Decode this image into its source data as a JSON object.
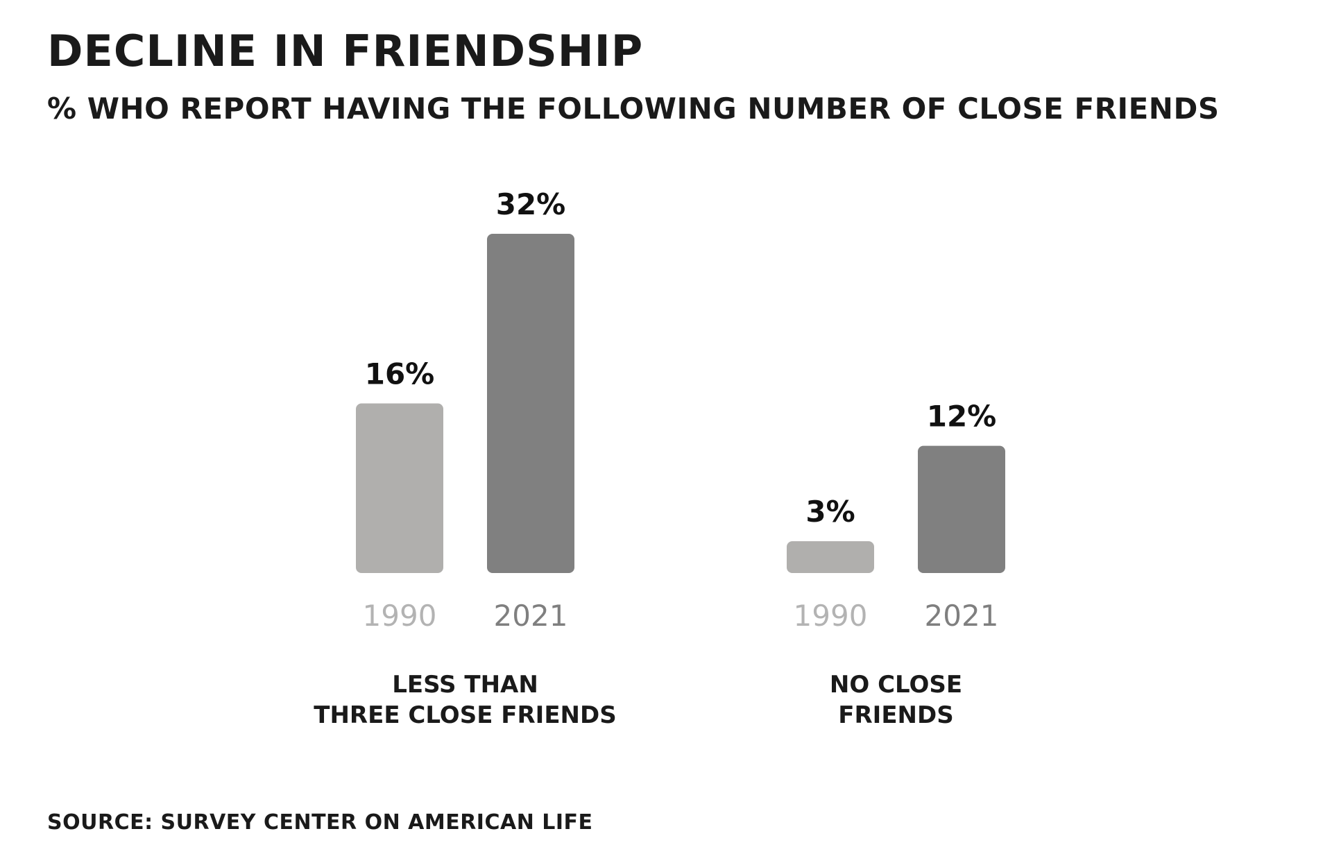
{
  "chart_data": {
    "type": "bar",
    "title": "DECLINE IN FRIENDSHIP",
    "subtitle": "% WHO REPORT HAVING THE FOLLOWING NUMBER OF CLOSE FRIENDS",
    "source": "SOURCE: SURVEY CENTER ON AMERICAN LIFE",
    "groups": [
      {
        "label_lines": [
          "LESS THAN",
          "THREE CLOSE FRIENDS"
        ],
        "bars": [
          {
            "year": "1990",
            "value": 16,
            "label": "16%",
            "color": "#b0afad"
          },
          {
            "year": "2021",
            "value": 32,
            "label": "32%",
            "color": "#808080"
          }
        ]
      },
      {
        "label_lines": [
          "NO CLOSE",
          "FRIENDS"
        ],
        "bars": [
          {
            "year": "1990",
            "value": 3,
            "label": "3%",
            "color": "#b0afad"
          },
          {
            "year": "2021",
            "value": 12,
            "label": "12%",
            "color": "#808080"
          }
        ]
      }
    ],
    "year_label_colors": {
      "1990": "#b3b3b3",
      "2021": "#7f7f7f"
    },
    "ylim": [
      0,
      32
    ],
    "grid": false,
    "legend": "none",
    "xlabel": "",
    "ylabel": ""
  }
}
